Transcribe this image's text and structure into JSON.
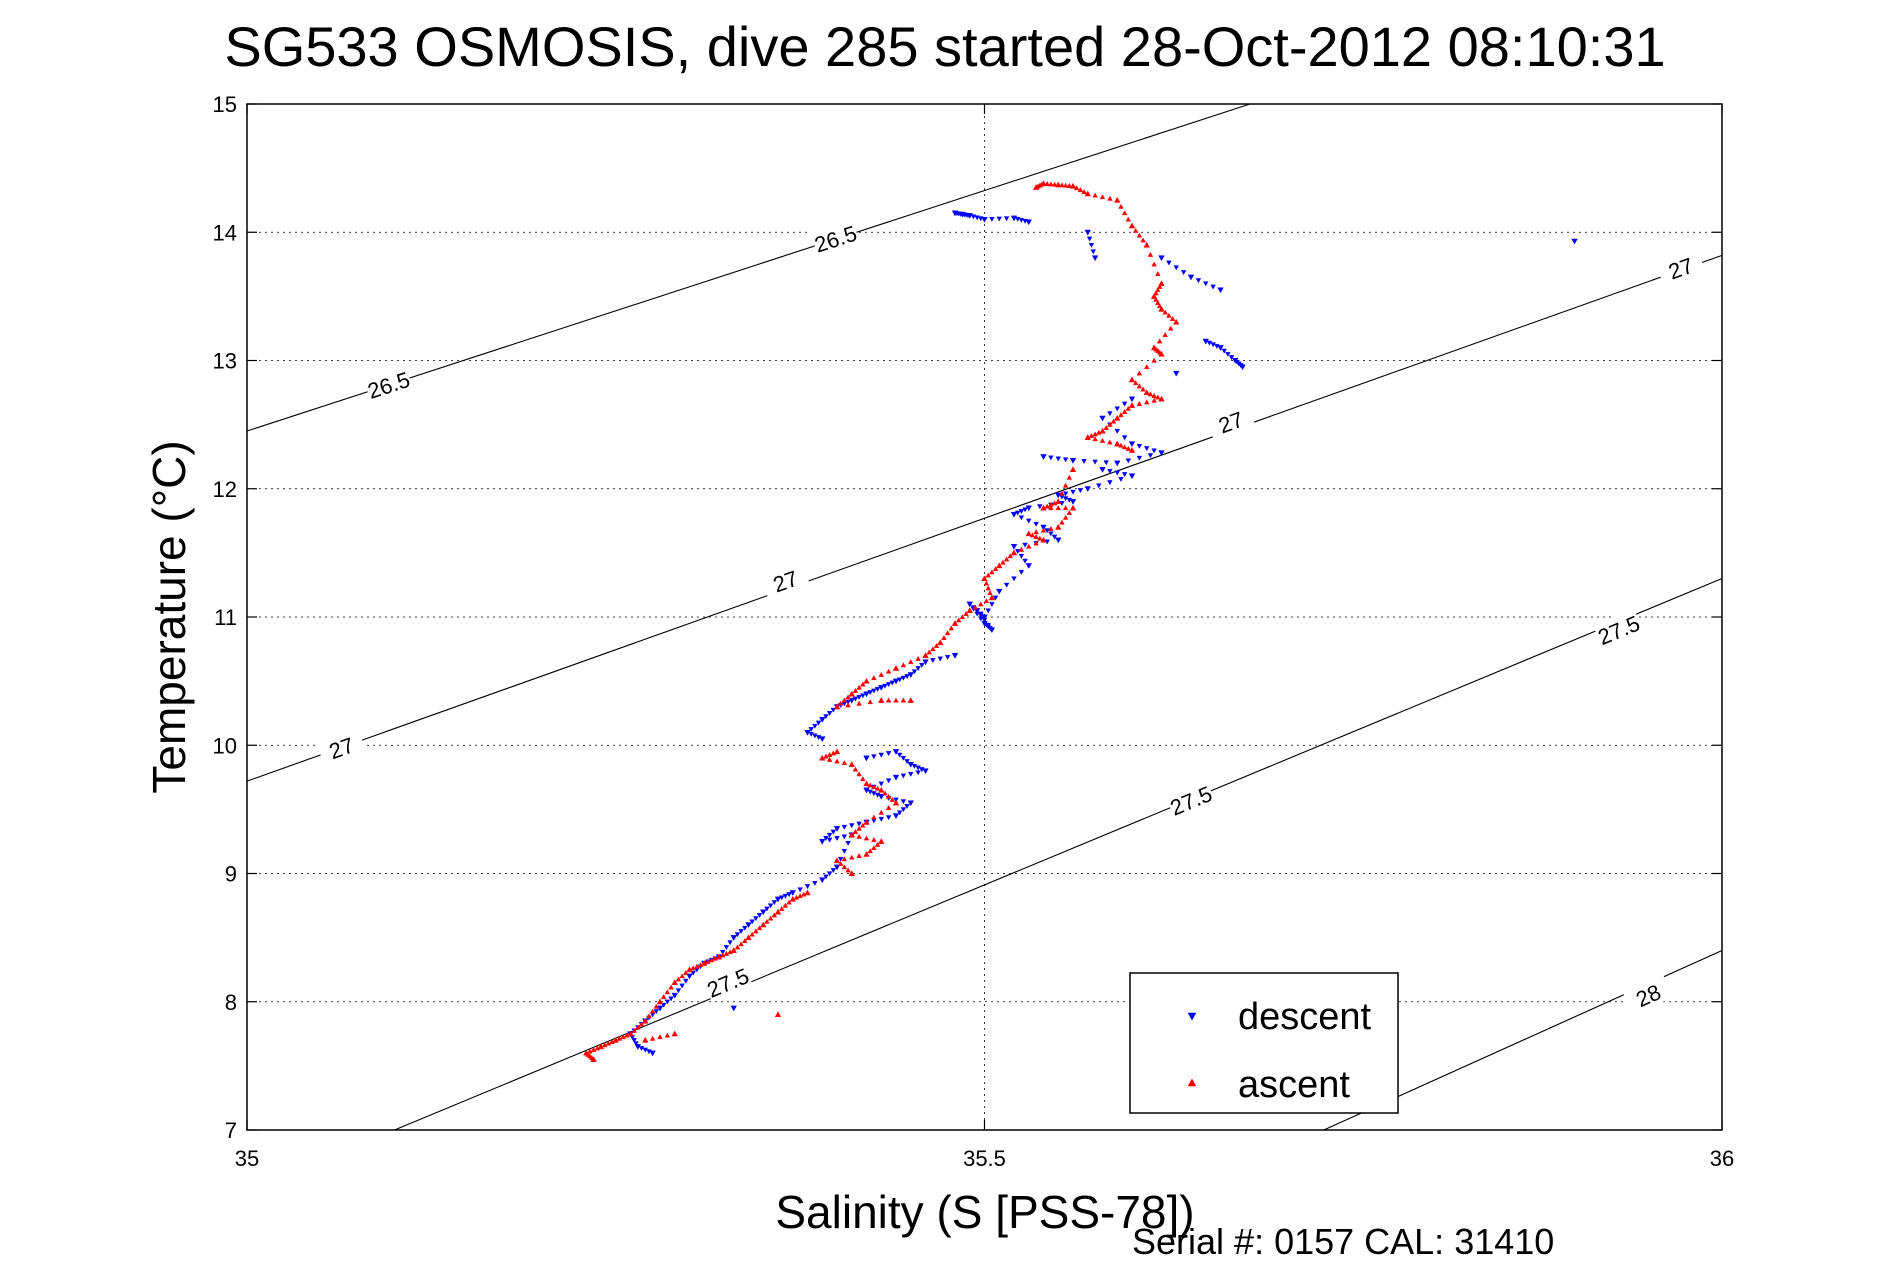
{
  "chart_data": {
    "type": "scatter",
    "title": "SG533 OSMOSIS, dive 285 started 28-Oct-2012 08:10:31",
    "xlabel": "Salinity (S [PSS-78])",
    "ylabel": "Temperature (°C)",
    "xlim": [
      35,
      36
    ],
    "ylim": [
      7,
      15
    ],
    "xticks": [
      35,
      35.5,
      36
    ],
    "xtick_labels": [
      "35",
      "35.5",
      "36"
    ],
    "yticks": [
      7,
      8,
      9,
      10,
      11,
      12,
      13,
      14,
      15
    ],
    "ytick_labels": [
      "7",
      "8",
      "9",
      "10",
      "11",
      "12",
      "13",
      "14",
      "15"
    ],
    "grid": true,
    "legend_position": "bottom-right",
    "footer": "Serial #: 0157  CAL: 31410",
    "colors": {
      "descent": "#0000ff",
      "ascent": "#ff0000",
      "contour": "#000000"
    },
    "contours": [
      {
        "level": "26.5",
        "points": [
          [
            35.0,
            12.45
          ],
          [
            35.68,
            15.0
          ]
        ],
        "labels": [
          [
            35.096,
            12.81
          ],
          [
            35.399,
            13.95
          ]
        ]
      },
      {
        "level": "27",
        "points": [
          [
            35.0,
            9.72
          ],
          [
            36.0,
            13.82
          ]
        ],
        "labels": [
          [
            35.064,
            9.98
          ],
          [
            35.365,
            11.28
          ],
          [
            35.667,
            12.52
          ],
          [
            35.972,
            13.72
          ]
        ]
      },
      {
        "level": "27.5",
        "points": [
          [
            35.1,
            7.0
          ],
          [
            36.0,
            11.3
          ]
        ],
        "labels": [
          [
            35.326,
            8.15
          ],
          [
            35.64,
            9.57
          ],
          [
            35.93,
            10.9
          ]
        ]
      },
      {
        "level": "28",
        "points": [
          [
            35.73,
            7.0
          ],
          [
            36.0,
            8.4
          ]
        ],
        "labels": [
          [
            35.95,
            8.05
          ]
        ]
      }
    ],
    "series": [
      {
        "name": "descent",
        "marker": "triangle-down",
        "x": [
          35.48,
          35.485,
          35.49,
          35.5,
          35.52,
          35.53,
          35.57,
          35.575,
          35.62,
          35.64,
          35.66,
          35.9,
          35.65,
          35.66,
          35.67,
          35.675,
          35.63,
          35.6,
          35.58,
          35.6,
          35.62,
          35.59,
          35.56,
          35.54,
          35.58,
          35.6,
          35.57,
          35.55,
          35.56,
          35.53,
          35.52,
          35.54,
          35.55,
          35.52,
          35.53,
          35.51,
          35.5,
          35.49,
          35.5,
          35.505,
          35.495,
          35.48,
          35.46,
          35.45,
          35.44,
          35.43,
          35.42,
          35.41,
          35.4,
          35.39,
          35.38,
          35.39,
          35.42,
          35.44,
          35.45,
          35.46,
          35.44,
          35.42,
          35.43,
          35.45,
          35.44,
          35.42,
          35.4,
          35.39,
          35.41,
          35.4,
          35.39,
          35.37,
          35.36,
          35.35,
          35.34,
          35.33,
          35.32,
          35.31,
          35.3,
          35.29,
          35.28,
          35.27,
          35.26,
          35.265,
          35.275,
          35.33
        ],
        "y": [
          14.15,
          14.14,
          14.13,
          14.1,
          14.11,
          14.08,
          14.0,
          13.8,
          13.8,
          13.65,
          13.55,
          13.93,
          13.15,
          13.1,
          13.0,
          12.95,
          12.9,
          12.7,
          12.55,
          12.35,
          12.28,
          12.2,
          12.22,
          12.25,
          12.15,
          12.1,
          12.0,
          11.95,
          11.9,
          11.85,
          11.8,
          11.7,
          11.6,
          11.55,
          11.4,
          11.2,
          11.0,
          11.1,
          10.95,
          10.9,
          11.05,
          10.7,
          10.65,
          10.55,
          10.5,
          10.45,
          10.4,
          10.35,
          10.3,
          10.2,
          10.1,
          10.05,
          9.9,
          9.95,
          9.85,
          9.8,
          9.75,
          9.65,
          9.6,
          9.55,
          9.45,
          9.4,
          9.35,
          9.25,
          9.3,
          9.05,
          8.95,
          8.85,
          8.8,
          8.7,
          8.6,
          8.5,
          8.35,
          8.3,
          8.2,
          8.05,
          7.95,
          7.85,
          7.75,
          7.65,
          7.6,
          7.95
        ]
      },
      {
        "name": "ascent",
        "marker": "triangle-up",
        "x": [
          35.535,
          35.54,
          35.55,
          35.56,
          35.57,
          35.59,
          35.6,
          35.61,
          35.62,
          35.615,
          35.62,
          35.63,
          35.615,
          35.62,
          35.6,
          35.61,
          35.62,
          35.6,
          35.59,
          35.58,
          35.57,
          35.59,
          35.6,
          35.56,
          35.55,
          35.54,
          35.56,
          35.55,
          35.53,
          35.54,
          35.52,
          35.51,
          35.5,
          35.505,
          35.49,
          35.48,
          35.47,
          35.46,
          35.44,
          35.42,
          35.41,
          35.4,
          35.43,
          35.45,
          35.4,
          35.39,
          35.41,
          35.42,
          35.43,
          35.44,
          35.42,
          35.41,
          35.43,
          35.42,
          35.4,
          35.41,
          35.38,
          35.37,
          35.36,
          35.35,
          35.34,
          35.33,
          35.32,
          35.31,
          35.3,
          35.29,
          35.28,
          35.27,
          35.26,
          35.25,
          35.24,
          35.23,
          35.235,
          35.27,
          35.29,
          35.36
        ],
        "y": [
          14.35,
          14.38,
          14.37,
          14.36,
          14.3,
          14.25,
          14.05,
          13.9,
          13.6,
          13.5,
          13.4,
          13.3,
          13.1,
          13.05,
          12.85,
          12.75,
          12.7,
          12.65,
          12.55,
          12.45,
          12.4,
          12.35,
          12.3,
          12.15,
          11.9,
          11.85,
          11.85,
          11.7,
          11.65,
          11.6,
          11.5,
          11.4,
          11.3,
          11.15,
          11.05,
          10.95,
          10.8,
          10.7,
          10.6,
          10.5,
          10.4,
          10.3,
          10.35,
          10.35,
          9.95,
          9.9,
          9.85,
          9.7,
          9.65,
          9.55,
          9.4,
          9.3,
          9.25,
          9.15,
          9.1,
          9.0,
          8.85,
          8.8,
          8.7,
          8.6,
          8.5,
          8.4,
          8.35,
          8.3,
          8.25,
          8.15,
          8.0,
          7.85,
          7.75,
          7.7,
          7.65,
          7.6,
          7.55,
          7.7,
          7.75,
          7.9
        ]
      }
    ]
  }
}
